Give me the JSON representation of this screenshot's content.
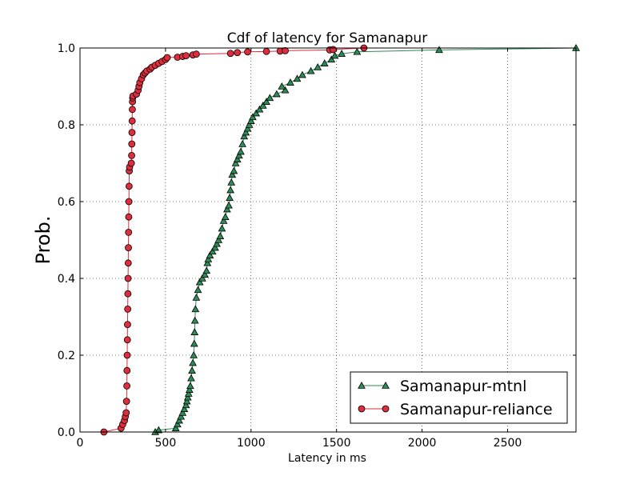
{
  "chart_data": {
    "type": "line",
    "title": "Cdf of latency for Samanapur",
    "xlabel": "Latency in ms",
    "ylabel": "Prob.",
    "xlim": [
      0,
      2900
    ],
    "ylim": [
      0,
      1.0
    ],
    "xticks": [
      0,
      500,
      1000,
      1500,
      2000,
      2500
    ],
    "yticks": [
      0.0,
      0.2,
      0.4,
      0.6,
      0.8,
      1.0
    ],
    "xtick_labels": [
      "0",
      "500",
      "1000",
      "1500",
      "2000",
      "2500"
    ],
    "ytick_labels": [
      "0.0",
      "0.2",
      "0.4",
      "0.6",
      "0.8",
      "1.0"
    ],
    "grid": true,
    "legend_position": "bottom-right",
    "series": [
      {
        "name": "Samanapur-mtnl",
        "color": "#2e8b57",
        "edge_color": "#000000",
        "marker": "triangle",
        "points": [
          [
            440,
            0.0
          ],
          [
            460,
            0.005
          ],
          [
            560,
            0.01
          ],
          [
            570,
            0.02
          ],
          [
            580,
            0.03
          ],
          [
            590,
            0.04
          ],
          [
            600,
            0.05
          ],
          [
            610,
            0.06
          ],
          [
            620,
            0.07
          ],
          [
            625,
            0.08
          ],
          [
            630,
            0.09
          ],
          [
            635,
            0.1
          ],
          [
            640,
            0.11
          ],
          [
            645,
            0.12
          ],
          [
            650,
            0.14
          ],
          [
            655,
            0.16
          ],
          [
            660,
            0.18
          ],
          [
            665,
            0.2
          ],
          [
            668,
            0.23
          ],
          [
            670,
            0.26
          ],
          [
            672,
            0.29
          ],
          [
            675,
            0.32
          ],
          [
            680,
            0.35
          ],
          [
            690,
            0.37
          ],
          [
            700,
            0.39
          ],
          [
            715,
            0.4
          ],
          [
            730,
            0.41
          ],
          [
            740,
            0.42
          ],
          [
            745,
            0.44
          ],
          [
            750,
            0.45
          ],
          [
            760,
            0.46
          ],
          [
            775,
            0.47
          ],
          [
            790,
            0.48
          ],
          [
            800,
            0.49
          ],
          [
            810,
            0.5
          ],
          [
            820,
            0.51
          ],
          [
            830,
            0.53
          ],
          [
            840,
            0.55
          ],
          [
            850,
            0.56
          ],
          [
            860,
            0.58
          ],
          [
            870,
            0.59
          ],
          [
            875,
            0.61
          ],
          [
            880,
            0.63
          ],
          [
            885,
            0.65
          ],
          [
            890,
            0.67
          ],
          [
            900,
            0.68
          ],
          [
            910,
            0.7
          ],
          [
            920,
            0.71
          ],
          [
            930,
            0.72
          ],
          [
            940,
            0.73
          ],
          [
            950,
            0.75
          ],
          [
            960,
            0.77
          ],
          [
            970,
            0.78
          ],
          [
            980,
            0.79
          ],
          [
            990,
            0.8
          ],
          [
            1000,
            0.81
          ],
          [
            1010,
            0.82
          ],
          [
            1030,
            0.83
          ],
          [
            1050,
            0.84
          ],
          [
            1070,
            0.85
          ],
          [
            1090,
            0.86
          ],
          [
            1110,
            0.87
          ],
          [
            1150,
            0.88
          ],
          [
            1200,
            0.89
          ],
          [
            1180,
            0.9
          ],
          [
            1230,
            0.91
          ],
          [
            1270,
            0.92
          ],
          [
            1300,
            0.93
          ],
          [
            1350,
            0.94
          ],
          [
            1390,
            0.95
          ],
          [
            1430,
            0.96
          ],
          [
            1470,
            0.97
          ],
          [
            1490,
            0.98
          ],
          [
            1530,
            0.985
          ],
          [
            1620,
            0.99
          ],
          [
            2100,
            0.995
          ],
          [
            2900,
            1.0
          ]
        ]
      },
      {
        "name": "Samanapur-reliance",
        "color": "#dc2e3c",
        "edge_color": "#000000",
        "marker": "circle",
        "points": [
          [
            140,
            0.0
          ],
          [
            240,
            0.01
          ],
          [
            250,
            0.02
          ],
          [
            260,
            0.03
          ],
          [
            265,
            0.04
          ],
          [
            270,
            0.05
          ],
          [
            272,
            0.08
          ],
          [
            274,
            0.12
          ],
          [
            275,
            0.16
          ],
          [
            276,
            0.2
          ],
          [
            277,
            0.24
          ],
          [
            278,
            0.28
          ],
          [
            279,
            0.32
          ],
          [
            280,
            0.36
          ],
          [
            281,
            0.4
          ],
          [
            282,
            0.44
          ],
          [
            283,
            0.48
          ],
          [
            284,
            0.52
          ],
          [
            285,
            0.56
          ],
          [
            286,
            0.6
          ],
          [
            287,
            0.64
          ],
          [
            288,
            0.68
          ],
          [
            290,
            0.69
          ],
          [
            300,
            0.7
          ],
          [
            302,
            0.72
          ],
          [
            303,
            0.75
          ],
          [
            304,
            0.78
          ],
          [
            305,
            0.81
          ],
          [
            306,
            0.84
          ],
          [
            307,
            0.86
          ],
          [
            308,
            0.87
          ],
          [
            310,
            0.875
          ],
          [
            330,
            0.88
          ],
          [
            340,
            0.89
          ],
          [
            345,
            0.9
          ],
          [
            350,
            0.91
          ],
          [
            360,
            0.92
          ],
          [
            370,
            0.93
          ],
          [
            380,
            0.935
          ],
          [
            390,
            0.94
          ],
          [
            410,
            0.945
          ],
          [
            420,
            0.95
          ],
          [
            440,
            0.955
          ],
          [
            460,
            0.96
          ],
          [
            480,
            0.965
          ],
          [
            500,
            0.97
          ],
          [
            510,
            0.975
          ],
          [
            570,
            0.976
          ],
          [
            600,
            0.978
          ],
          [
            620,
            0.98
          ],
          [
            660,
            0.982
          ],
          [
            680,
            0.984
          ],
          [
            880,
            0.986
          ],
          [
            920,
            0.988
          ],
          [
            980,
            0.99
          ],
          [
            1090,
            0.991
          ],
          [
            1170,
            0.992
          ],
          [
            1200,
            0.993
          ],
          [
            1460,
            0.995
          ],
          [
            1480,
            0.996
          ],
          [
            1660,
            1.0
          ]
        ]
      }
    ]
  }
}
